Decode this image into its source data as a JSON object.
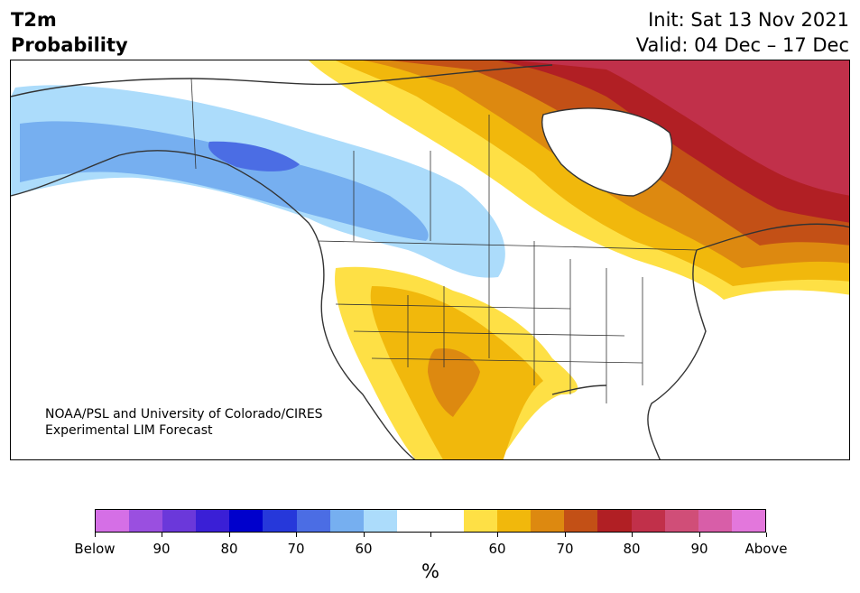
{
  "header": {
    "title_line1": "T2m",
    "title_line2": "Probability",
    "init_text": "Init: Sat 13 Nov 2021",
    "valid_text": "Valid: 04 Dec – 17 Dec"
  },
  "map": {
    "credit_line1": "NOAA/PSL and University of Colorado/CIRES",
    "credit_line2": "Experimental LIM Forecast",
    "region": "North America"
  },
  "colorbar": {
    "unit": "%",
    "colors": [
      "#d56fe6",
      "#9a4fe0",
      "#6b38da",
      "#3a1fd6",
      "#0000cc",
      "#2638da",
      "#4b6de4",
      "#76aff0",
      "#acdcfb",
      "#ffffff",
      "#ffffff",
      "#fee045",
      "#f1b80c",
      "#dd8910",
      "#c35016",
      "#b11f24",
      "#c1304a",
      "#d04e78",
      "#d85ea8",
      "#e377dc"
    ],
    "labels": [
      "Below",
      "90",
      "80",
      "70",
      "60",
      "",
      "60",
      "70",
      "80",
      "90",
      "Above"
    ]
  }
}
